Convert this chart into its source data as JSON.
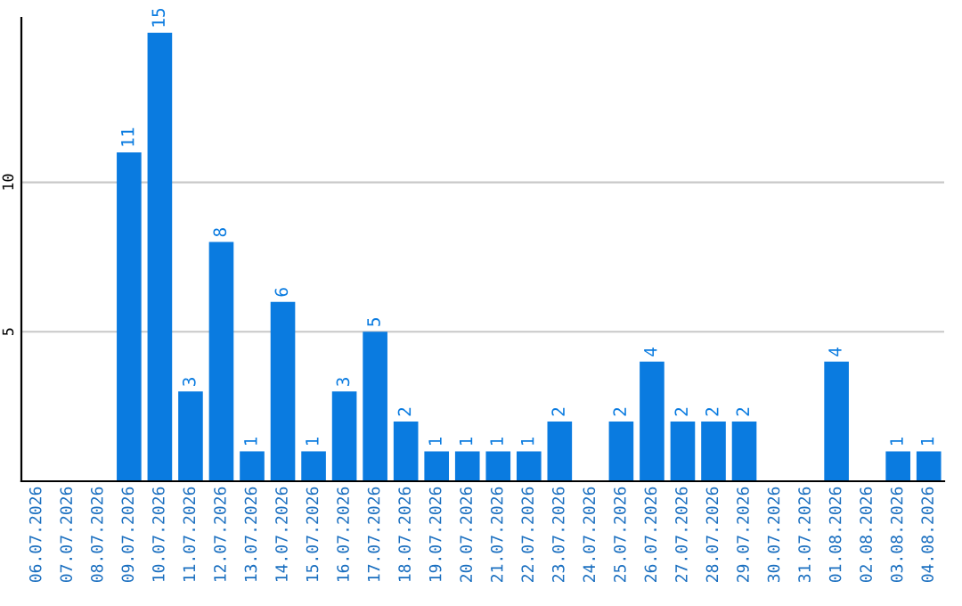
{
  "chart_data": {
    "type": "bar",
    "categories": [
      "06.07.2026",
      "07.07.2026",
      "08.07.2026",
      "09.07.2026",
      "10.07.2026",
      "11.07.2026",
      "12.07.2026",
      "13.07.2026",
      "14.07.2026",
      "15.07.2026",
      "16.07.2026",
      "17.07.2026",
      "18.07.2026",
      "19.07.2026",
      "20.07.2026",
      "21.07.2026",
      "22.07.2026",
      "23.07.2026",
      "24.07.2026",
      "25.07.2026",
      "26.07.2026",
      "27.07.2026",
      "28.07.2026",
      "29.07.2026",
      "30.07.2026",
      "31.07.2026",
      "01.08.2026",
      "02.08.2026",
      "03.08.2026",
      "04.08.2026"
    ],
    "values": [
      0,
      0,
      0,
      11,
      15,
      3,
      8,
      1,
      6,
      1,
      3,
      5,
      2,
      1,
      1,
      1,
      1,
      2,
      0,
      2,
      4,
      2,
      2,
      2,
      0,
      0,
      4,
      0,
      1,
      1
    ],
    "value_labels": [
      null,
      null,
      null,
      "11",
      "15",
      "3",
      "8",
      "1",
      "6",
      "1",
      "3",
      "5",
      "2",
      "1",
      "1",
      "1",
      "1",
      "2",
      null,
      "2",
      "4",
      "2",
      "2",
      "2",
      null,
      null,
      "4",
      null,
      "1",
      "1"
    ],
    "color": "#0a7be0",
    "ylim": [
      0,
      15.5
    ],
    "yticks": [
      5,
      10
    ],
    "grid": "y"
  }
}
